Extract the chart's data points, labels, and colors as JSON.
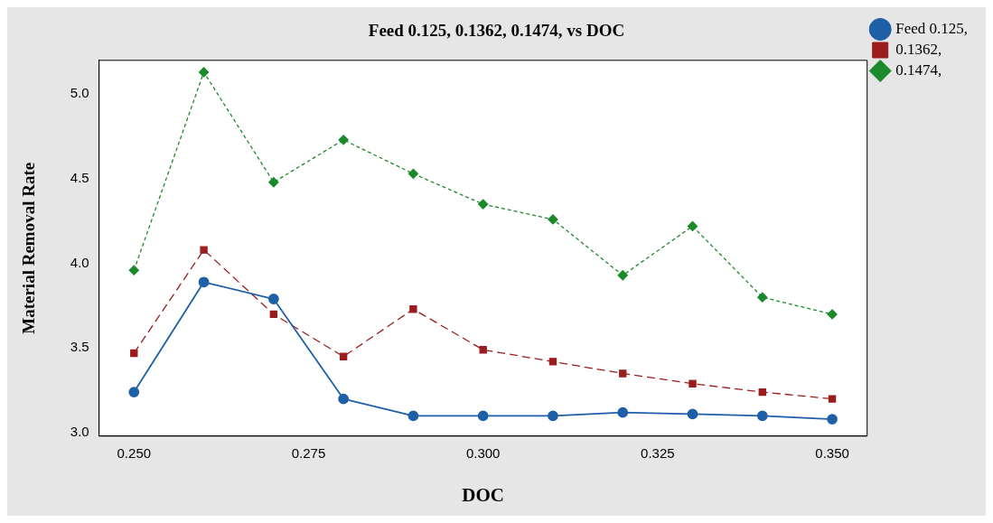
{
  "chart_data": {
    "type": "line",
    "title": "Feed 0.125, 0.1362, 0.1474, vs DOC",
    "xlabel": "DOC",
    "ylabel": "Material Removal Rate",
    "x": [
      0.25,
      0.26,
      0.27,
      0.28,
      0.29,
      0.3,
      0.31,
      0.32,
      0.33,
      0.34,
      0.35
    ],
    "xlim": [
      0.245,
      0.355
    ],
    "xticks": [
      {
        "value": 0.25,
        "label": "0.250"
      },
      {
        "value": 0.275,
        "label": "0.275"
      },
      {
        "value": 0.3,
        "label": "0.300"
      },
      {
        "value": 0.325,
        "label": "0.325"
      },
      {
        "value": 0.35,
        "label": "0.350"
      }
    ],
    "ylim": [
      2.98,
      5.2
    ],
    "yticks": [
      {
        "value": 3,
        "label": "3.0"
      },
      {
        "value": 3.5,
        "label": "3.5"
      },
      {
        "value": 4,
        "label": "4.0"
      },
      {
        "value": 4.5,
        "label": "4.5"
      },
      {
        "value": 5,
        "label": "5.0"
      }
    ],
    "grid": false,
    "legend": "top right",
    "series": [
      {
        "name": "Feed 0.125,",
        "color": "#1f5fa8",
        "marker": "circle",
        "line_style": "solid",
        "values": [
          3.24,
          3.89,
          3.79,
          3.2,
          3.1,
          3.1,
          3.1,
          3.12,
          3.11,
          3.1,
          3.08
        ]
      },
      {
        "name": "0.1362,",
        "color": "#9b1c1c",
        "marker": "square",
        "line_style": "dashed",
        "values": [
          3.47,
          4.08,
          3.7,
          3.45,
          3.73,
          3.49,
          3.42,
          3.35,
          3.29,
          3.24,
          3.2
        ]
      },
      {
        "name": "0.1474,",
        "color": "#1a8a2a",
        "marker": "diamond",
        "line_style": "dotted",
        "values": [
          3.96,
          5.13,
          4.48,
          4.73,
          4.53,
          4.35,
          4.26,
          3.93,
          4.22,
          3.8,
          3.7
        ]
      }
    ]
  }
}
